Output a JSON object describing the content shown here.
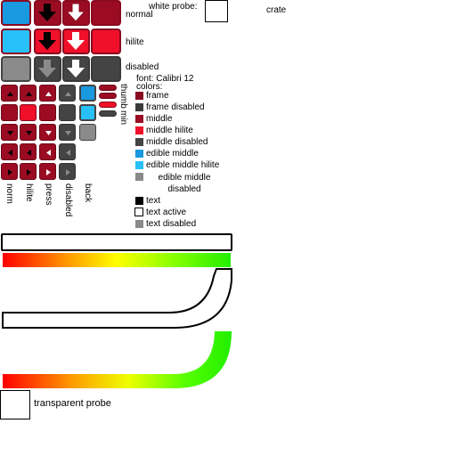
{
  "labels": {
    "normal": "normal",
    "hilite": "hilite",
    "disabled": "disabled",
    "white_probe": "white probe:",
    "crate": "crate",
    "thumb": "thumb",
    "min": "min",
    "font": "font: Calibri 12",
    "colors": "colors:",
    "col_norm": "norm",
    "col_hilite": "hilite",
    "col_press": "press",
    "col_disabled": "disabled",
    "col_back": "back",
    "transparent_probe": "transparent probe"
  },
  "legend": [
    {
      "label": "frame",
      "color": "#8a0a20"
    },
    {
      "label": "frame disabled",
      "color": "#3a3a3a"
    },
    {
      "label": "middle",
      "color": "#9b0c22"
    },
    {
      "label": "middle hilite",
      "color": "#f0102a"
    },
    {
      "label": "middle disabled",
      "color": "#444444"
    },
    {
      "label": "edible middle",
      "color": "#1899e0"
    },
    {
      "label": "edible middle hilite",
      "color": "#28c0f8"
    },
    {
      "label": "edible middle disabled",
      "color": "#8a8a8a"
    }
  ],
  "text_legend": [
    {
      "label": "text",
      "swatch": "filled-black"
    },
    {
      "label": "text active",
      "swatch": "outlined-white"
    },
    {
      "label": "text disabled",
      "swatch": "filled-gray"
    }
  ],
  "colors": {
    "gradient_start": "#ff0000",
    "gradient_mid": "#ffff00",
    "gradient_end": "#22ee00"
  }
}
